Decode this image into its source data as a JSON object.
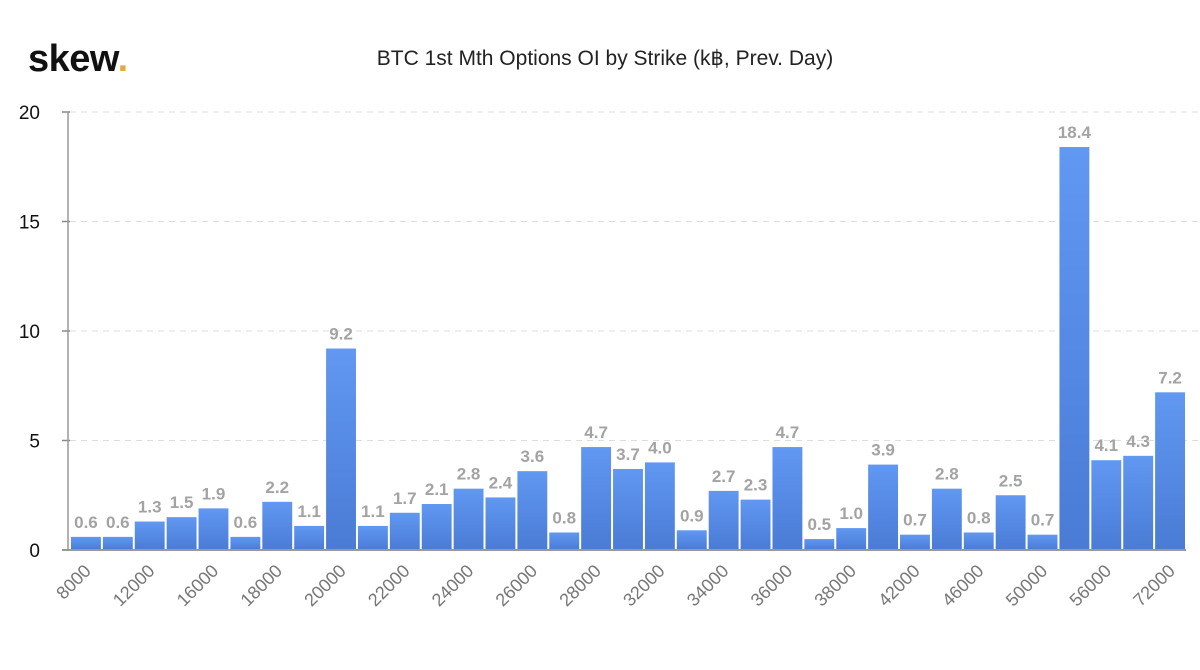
{
  "logo": {
    "text": "skew",
    "dot": ".",
    "dot_color": "#e8a93a"
  },
  "chart_data": {
    "type": "bar",
    "title": "BTC 1st Mth Options OI by Strike (k฿, Prev. Day)",
    "xlabel": "",
    "ylabel": "",
    "ylim": [
      0,
      20
    ],
    "yticks": [
      0,
      5,
      10,
      15,
      20
    ],
    "grid": "horizontal dashed",
    "values": [
      0.6,
      0.6,
      1.3,
      1.5,
      1.9,
      0.6,
      2.2,
      1.1,
      9.2,
      1.1,
      1.7,
      2.1,
      2.8,
      2.4,
      3.6,
      0.8,
      4.7,
      3.7,
      4.0,
      0.9,
      2.7,
      2.3,
      4.7,
      0.5,
      1.0,
      3.9,
      0.7,
      2.8,
      0.8,
      2.5,
      0.7,
      18.4,
      4.1,
      4.3,
      7.2
    ],
    "data_labels": [
      "0.6",
      "0.6",
      "1.3",
      "1.5",
      "1.9",
      "0.6",
      "2.2",
      "1.1",
      "9.2",
      "1.1",
      "1.7",
      "2.1",
      "2.8",
      "2.4",
      "3.6",
      "0.8",
      "4.7",
      "3.7",
      "4.0",
      "0.9",
      "2.7",
      "2.3",
      "4.7",
      "0.5",
      "1.0",
      "3.9",
      "0.7",
      "2.8",
      "0.8",
      "2.5",
      "0.7",
      "18.4",
      "4.1",
      "4.3",
      "7.2"
    ],
    "x_tick_labels": [
      "8000",
      "12000",
      "16000",
      "18000",
      "20000",
      "22000",
      "24000",
      "26000",
      "28000",
      "32000",
      "34000",
      "36000",
      "38000",
      "42000",
      "46000",
      "50000",
      "56000",
      "72000"
    ],
    "x_tick_every": 2,
    "bar_color_top": "#6198f2",
    "bar_color_bottom": "#4a7bd5"
  }
}
